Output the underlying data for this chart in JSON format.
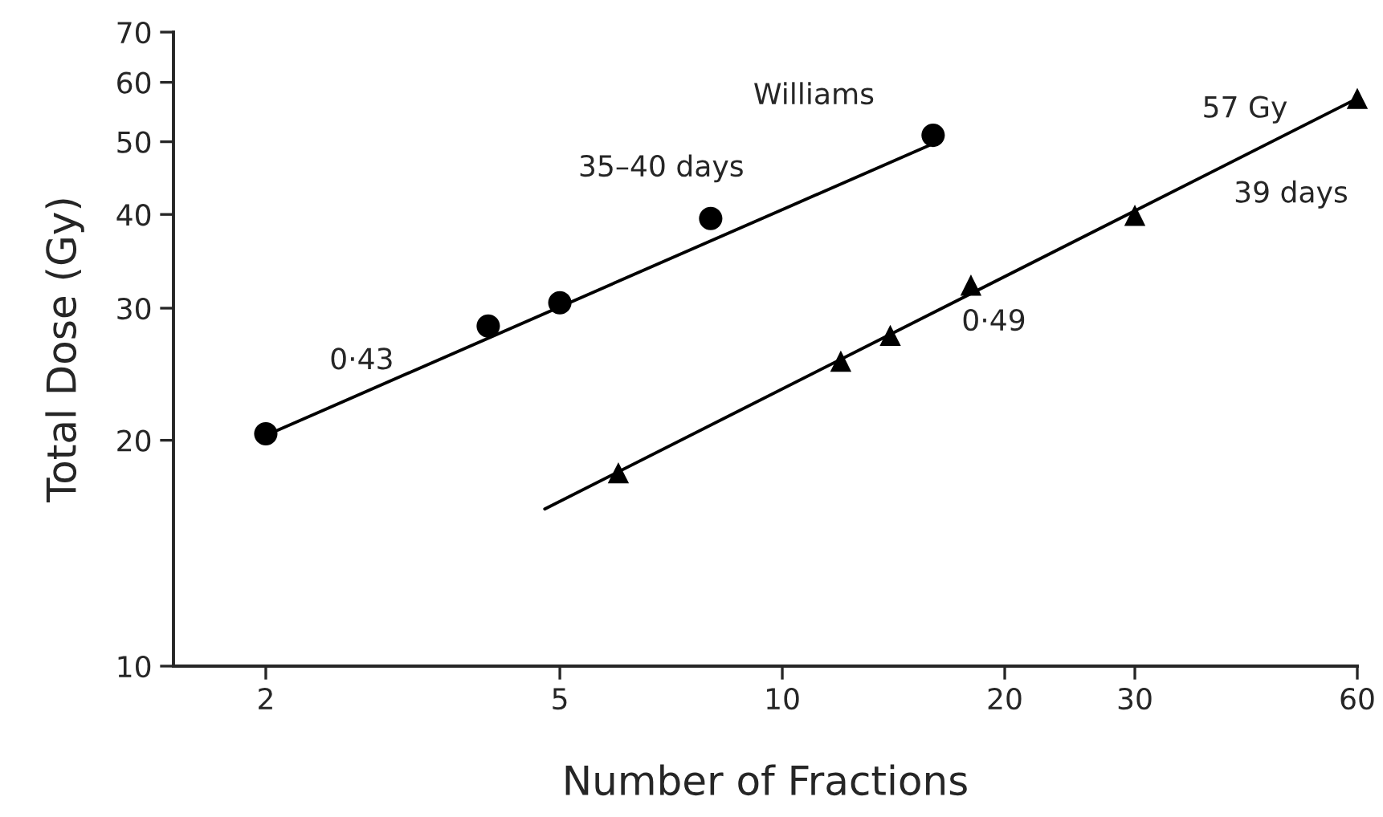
{
  "chart_data": {
    "type": "scatter",
    "xlabel": "Number of Fractions",
    "ylabel": "Total Dose (Gy)",
    "log": "xy",
    "xlim": [
      1.5,
      60
    ],
    "xticks": [
      2,
      5,
      10,
      20,
      30,
      60
    ],
    "ylim": [
      10,
      70
    ],
    "yticks": [
      10,
      20,
      30,
      40,
      50,
      60,
      70
    ],
    "grid": false,
    "legend": false,
    "series": [
      {
        "marker": "circle",
        "color": "#000000",
        "x": [
          2,
          4,
          5,
          8,
          16
        ],
        "values": [
          20.4,
          28.4,
          30.5,
          39.5,
          51
        ]
      },
      {
        "type": "line",
        "marker": "none",
        "line_style": "solid",
        "color": "#000000",
        "x": [
          2,
          16
        ],
        "values": [
          20.3,
          49.7
        ]
      },
      {
        "marker": "triangle",
        "color": "#000000",
        "x": [
          6,
          12,
          14,
          18,
          30,
          60
        ],
        "values": [
          18.1,
          25.5,
          27.6,
          32.2,
          39.9,
          57.1
        ]
      },
      {
        "type": "line",
        "marker": "none",
        "line_style": "solid",
        "color": "#000000",
        "x": [
          4.77,
          60
        ],
        "values": [
          16.2,
          57.1
        ]
      }
    ],
    "annotations": [
      "Williams",
      "35–40 days",
      "0·43",
      "0·49",
      "57 Gy",
      "39 days"
    ]
  }
}
